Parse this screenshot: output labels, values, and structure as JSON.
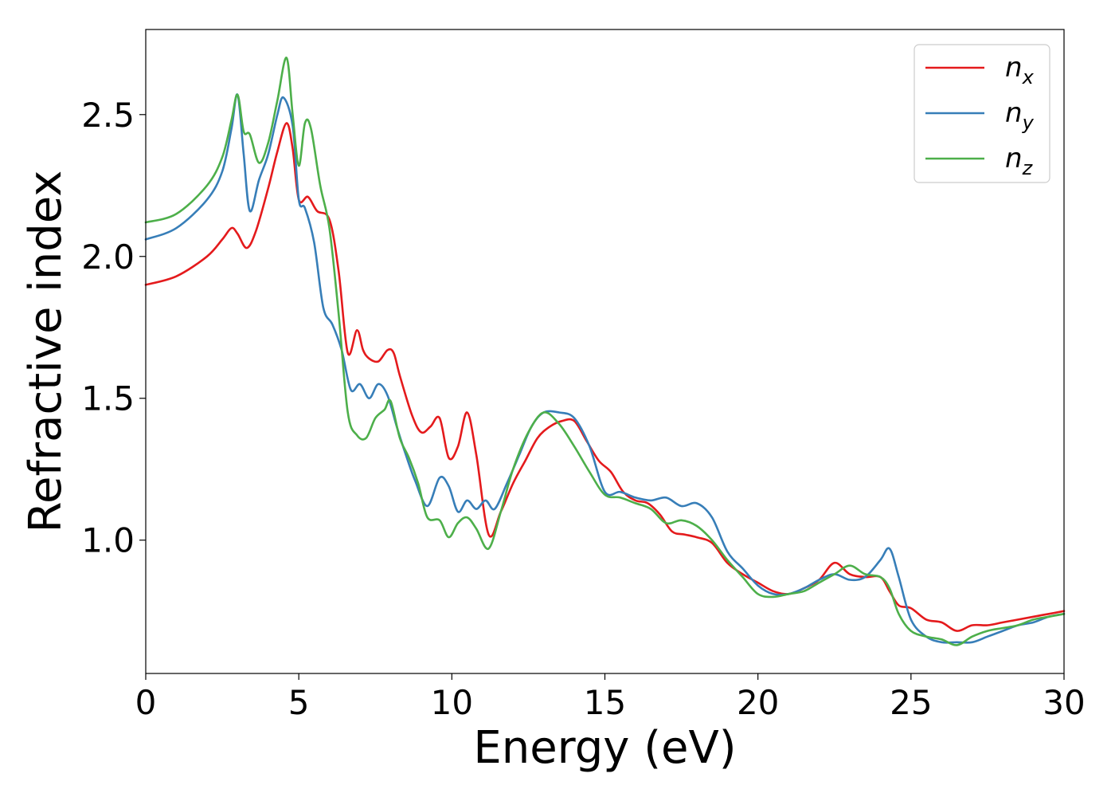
{
  "chart_data": {
    "type": "line",
    "title": "",
    "xlabel": "Energy (eV)",
    "ylabel": "Refractive index",
    "xlim": [
      0,
      30
    ],
    "ylim": [
      0.53,
      2.8
    ],
    "xticks": [
      0,
      5,
      10,
      15,
      20,
      25,
      30
    ],
    "xtick_labels": [
      "0",
      "5",
      "10",
      "15",
      "20",
      "25",
      "30"
    ],
    "yticks": [
      1.0,
      1.5,
      2.0,
      2.5
    ],
    "ytick_labels": [
      "1.0",
      "1.5",
      "2.0",
      "2.5"
    ],
    "grid": false,
    "legend_position": "top-right",
    "series": [
      {
        "name": "n_x",
        "label_main": "n",
        "label_sub": "x",
        "color": "#e41a1c",
        "x": [
          0,
          1,
          2,
          2.5,
          2.8,
          3.0,
          3.3,
          3.6,
          4.0,
          4.3,
          4.6,
          4.8,
          5.0,
          5.3,
          5.6,
          6.0,
          6.3,
          6.6,
          6.9,
          7.1,
          7.3,
          7.6,
          7.9,
          8.1,
          8.3,
          8.7,
          9.0,
          9.3,
          9.6,
          9.9,
          10.2,
          10.5,
          10.8,
          11.2,
          11.6,
          12.0,
          12.4,
          12.8,
          13.2,
          13.6,
          14.0,
          14.4,
          14.8,
          15.2,
          15.6,
          16.0,
          16.4,
          16.8,
          17.2,
          17.6,
          18.0,
          18.5,
          19.0,
          19.5,
          20.0,
          20.5,
          21.0,
          21.5,
          22.0,
          22.5,
          23.0,
          23.5,
          24.0,
          24.3,
          24.6,
          25.0,
          25.5,
          26.0,
          26.5,
          27.0,
          27.5,
          28.0,
          28.5,
          29.0,
          29.5,
          30.0
        ],
        "values": [
          1.9,
          1.93,
          2.0,
          2.06,
          2.1,
          2.08,
          2.03,
          2.09,
          2.24,
          2.37,
          2.47,
          2.38,
          2.2,
          2.21,
          2.16,
          2.13,
          1.95,
          1.66,
          1.74,
          1.67,
          1.64,
          1.63,
          1.67,
          1.66,
          1.58,
          1.44,
          1.38,
          1.4,
          1.43,
          1.29,
          1.33,
          1.45,
          1.3,
          1.02,
          1.1,
          1.2,
          1.28,
          1.36,
          1.4,
          1.42,
          1.42,
          1.35,
          1.28,
          1.24,
          1.17,
          1.14,
          1.13,
          1.09,
          1.03,
          1.02,
          1.01,
          0.99,
          0.92,
          0.88,
          0.85,
          0.82,
          0.81,
          0.83,
          0.86,
          0.92,
          0.88,
          0.87,
          0.87,
          0.82,
          0.77,
          0.76,
          0.72,
          0.71,
          0.68,
          0.7,
          0.7,
          0.71,
          0.72,
          0.73,
          0.74,
          0.75
        ]
      },
      {
        "name": "n_y",
        "label_main": "n",
        "label_sub": "y",
        "color": "#377eb8",
        "x": [
          0,
          1,
          2,
          2.5,
          2.8,
          3.0,
          3.2,
          3.4,
          3.7,
          4.0,
          4.3,
          4.5,
          4.8,
          5.0,
          5.2,
          5.5,
          5.8,
          6.1,
          6.4,
          6.7,
          7.0,
          7.3,
          7.6,
          7.9,
          8.2,
          8.5,
          8.8,
          9.2,
          9.6,
          9.9,
          10.2,
          10.5,
          10.8,
          11.1,
          11.4,
          11.8,
          12.2,
          12.6,
          13.0,
          13.5,
          14.0,
          14.5,
          15.0,
          15.5,
          16.0,
          16.5,
          17.0,
          17.5,
          18.0,
          18.5,
          19.0,
          19.5,
          20.0,
          20.5,
          21.0,
          21.5,
          22.0,
          22.5,
          23.0,
          23.5,
          24.0,
          24.3,
          24.6,
          25.0,
          25.5,
          26.0,
          26.5,
          27.0,
          27.5,
          28.0,
          28.5,
          29.0,
          29.5,
          30.0
        ],
        "values": [
          2.06,
          2.1,
          2.2,
          2.3,
          2.45,
          2.57,
          2.36,
          2.16,
          2.27,
          2.36,
          2.5,
          2.56,
          2.46,
          2.2,
          2.17,
          2.05,
          1.82,
          1.76,
          1.67,
          1.53,
          1.55,
          1.5,
          1.55,
          1.51,
          1.4,
          1.3,
          1.21,
          1.12,
          1.22,
          1.19,
          1.1,
          1.14,
          1.11,
          1.14,
          1.11,
          1.2,
          1.3,
          1.4,
          1.45,
          1.45,
          1.43,
          1.33,
          1.17,
          1.17,
          1.15,
          1.14,
          1.15,
          1.12,
          1.13,
          1.08,
          0.96,
          0.9,
          0.84,
          0.81,
          0.81,
          0.83,
          0.86,
          0.88,
          0.86,
          0.87,
          0.93,
          0.97,
          0.87,
          0.72,
          0.66,
          0.64,
          0.64,
          0.64,
          0.66,
          0.68,
          0.7,
          0.71,
          0.73,
          0.74
        ]
      },
      {
        "name": "n_z",
        "label_main": "n",
        "label_sub": "z",
        "color": "#4daf4a",
        "x": [
          0,
          1,
          2,
          2.5,
          2.8,
          3.0,
          3.2,
          3.4,
          3.7,
          4.0,
          4.3,
          4.6,
          4.8,
          5.0,
          5.2,
          5.4,
          5.7,
          6.0,
          6.3,
          6.6,
          6.9,
          7.2,
          7.5,
          7.8,
          8.0,
          8.3,
          8.6,
          8.9,
          9.2,
          9.6,
          9.9,
          10.2,
          10.5,
          10.8,
          11.2,
          11.6,
          12.0,
          12.5,
          13.0,
          13.5,
          14.0,
          14.5,
          15.0,
          15.5,
          16.0,
          16.5,
          17.0,
          17.5,
          18.0,
          18.5,
          19.0,
          19.5,
          20.0,
          20.5,
          21.0,
          21.5,
          22.0,
          22.5,
          23.0,
          23.5,
          24.0,
          24.3,
          24.6,
          25.0,
          25.5,
          26.0,
          26.5,
          27.0,
          27.5,
          28.0,
          28.5,
          29.0,
          29.5,
          30.0
        ],
        "values": [
          2.12,
          2.15,
          2.25,
          2.35,
          2.48,
          2.57,
          2.44,
          2.43,
          2.33,
          2.4,
          2.55,
          2.7,
          2.5,
          2.32,
          2.47,
          2.45,
          2.25,
          2.1,
          1.8,
          1.45,
          1.37,
          1.36,
          1.43,
          1.46,
          1.49,
          1.36,
          1.29,
          1.2,
          1.08,
          1.07,
          1.01,
          1.06,
          1.08,
          1.04,
          0.97,
          1.1,
          1.25,
          1.38,
          1.45,
          1.41,
          1.33,
          1.24,
          1.16,
          1.15,
          1.13,
          1.11,
          1.06,
          1.07,
          1.05,
          1.0,
          0.93,
          0.87,
          0.81,
          0.8,
          0.81,
          0.82,
          0.85,
          0.88,
          0.91,
          0.88,
          0.87,
          0.83,
          0.74,
          0.68,
          0.66,
          0.65,
          0.63,
          0.66,
          0.68,
          0.69,
          0.7,
          0.72,
          0.73,
          0.74
        ]
      }
    ]
  }
}
